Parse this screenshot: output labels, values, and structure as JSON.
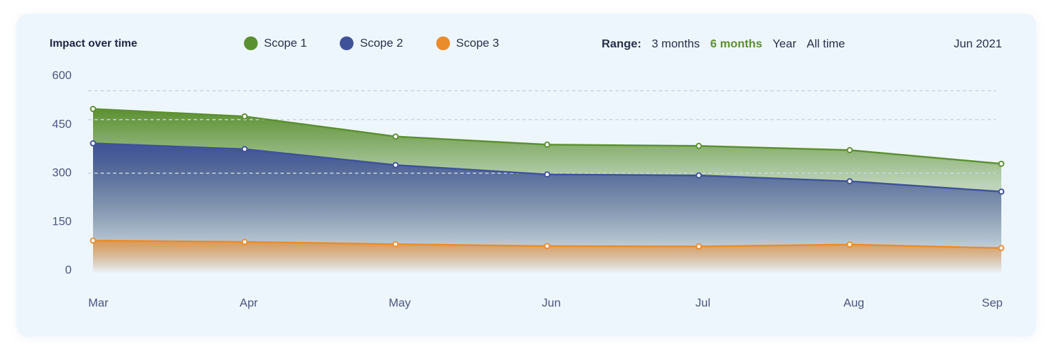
{
  "header": {
    "title": "Impact over time",
    "range_label": "Range:",
    "range_options": [
      "3 months",
      "6 months",
      "Year",
      "All time"
    ],
    "range_selected": "6 months",
    "date": "Jun 2021"
  },
  "colors": {
    "scope1": "#5b9030",
    "scope2": "#3f5299",
    "scope3": "#e98c2c",
    "gridline": "#c8d3e2",
    "card_background": "#eef6fd"
  },
  "chart_data": {
    "type": "area",
    "title": "Impact over time",
    "categories": [
      "Mar",
      "Apr",
      "May",
      "Jun",
      "Jul",
      "Aug",
      "Sep"
    ],
    "y_ticks": [
      600,
      450,
      300,
      150,
      0
    ],
    "ylim": [
      0,
      600
    ],
    "grid": "horizontal dashed",
    "legend_position": "top",
    "series": [
      {
        "name": "Scope 1",
        "color": "#5b9030",
        "values": [
          495,
          472,
          410,
          385,
          381,
          368,
          326
        ]
      },
      {
        "name": "Scope 2",
        "color": "#3f5299",
        "values": [
          389,
          371,
          322,
          293,
          290,
          272,
          240
        ]
      },
      {
        "name": "Scope 3",
        "color": "#e98c2c",
        "values": [
          89,
          85,
          78,
          72,
          71,
          77,
          66
        ]
      }
    ]
  }
}
